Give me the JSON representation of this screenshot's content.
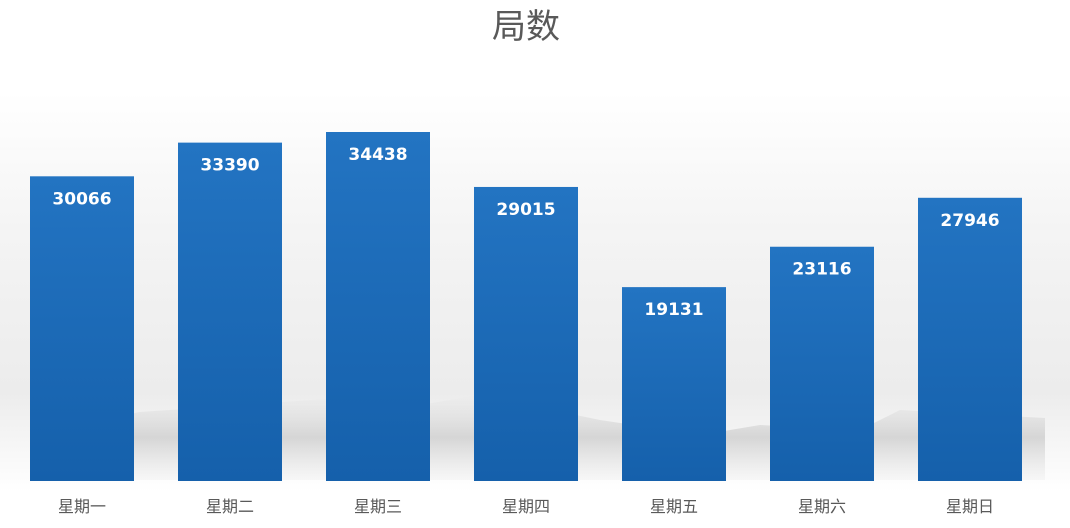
{
  "chart_data": {
    "type": "bar",
    "title": "局数",
    "categories": [
      "星期一",
      "星期二",
      "星期三",
      "星期四",
      "星期五",
      "星期六",
      "星期日"
    ],
    "values": [
      30066,
      33390,
      34438,
      29015,
      19131,
      23116,
      27946
    ],
    "xlabel": "",
    "ylabel": "",
    "ylim": [
      0,
      34438
    ],
    "grid": false,
    "legend": "none",
    "data_labels": "inside-end",
    "bar_color": "#1f6fbd"
  }
}
